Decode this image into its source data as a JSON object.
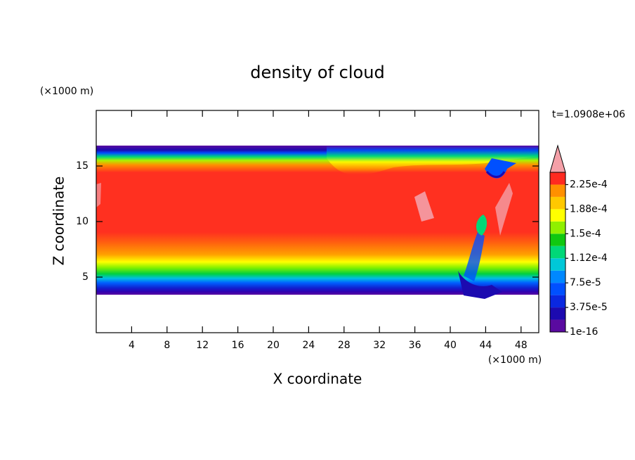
{
  "chart_data": {
    "type": "contour",
    "title": "density of cloud",
    "xlabel": "X coordinate",
    "ylabel": "Z coordinate",
    "xunit": "(×1000 m)",
    "yunit": "(×1000 m)",
    "time_label": "t=1.0908e+06",
    "xlim": [
      0,
      50
    ],
    "ylim": [
      0,
      20
    ],
    "xticks": [
      4,
      8,
      12,
      16,
      20,
      24,
      28,
      32,
      36,
      40,
      44,
      48
    ],
    "yticks": [
      5,
      10,
      15
    ],
    "colorbar": {
      "levels": [
        1e-16,
        1.875e-05,
        3.75e-05,
        5.625e-05,
        7.5e-05,
        9.375e-05,
        0.0001125,
        0.00013125,
        0.00015,
        0.00016875,
        0.0001875,
        0.00020625,
        0.000225
      ],
      "colors": [
        "#5a0aa0",
        "#1c0ab0",
        "#0a28e0",
        "#0050ff",
        "#0088ff",
        "#00c8d8",
        "#00d878",
        "#10c810",
        "#90f000",
        "#ffff00",
        "#ffc800",
        "#ff9000",
        "#ff2a20"
      ],
      "over_color": "#f4a0a8",
      "ticks": [
        {
          "value": 1e-16,
          "label": "1e-16"
        },
        {
          "value": 3.75e-05,
          "label": "3.75e-5"
        },
        {
          "value": 7.5e-05,
          "label": "7.5e-5"
        },
        {
          "value": 0.0001125,
          "label": "1.12e-4"
        },
        {
          "value": 0.00015,
          "label": "1.5e-4"
        },
        {
          "value": 0.0001875,
          "label": "1.88e-4"
        },
        {
          "value": 0.000225,
          "label": "2.25e-4"
        }
      ]
    }
  }
}
